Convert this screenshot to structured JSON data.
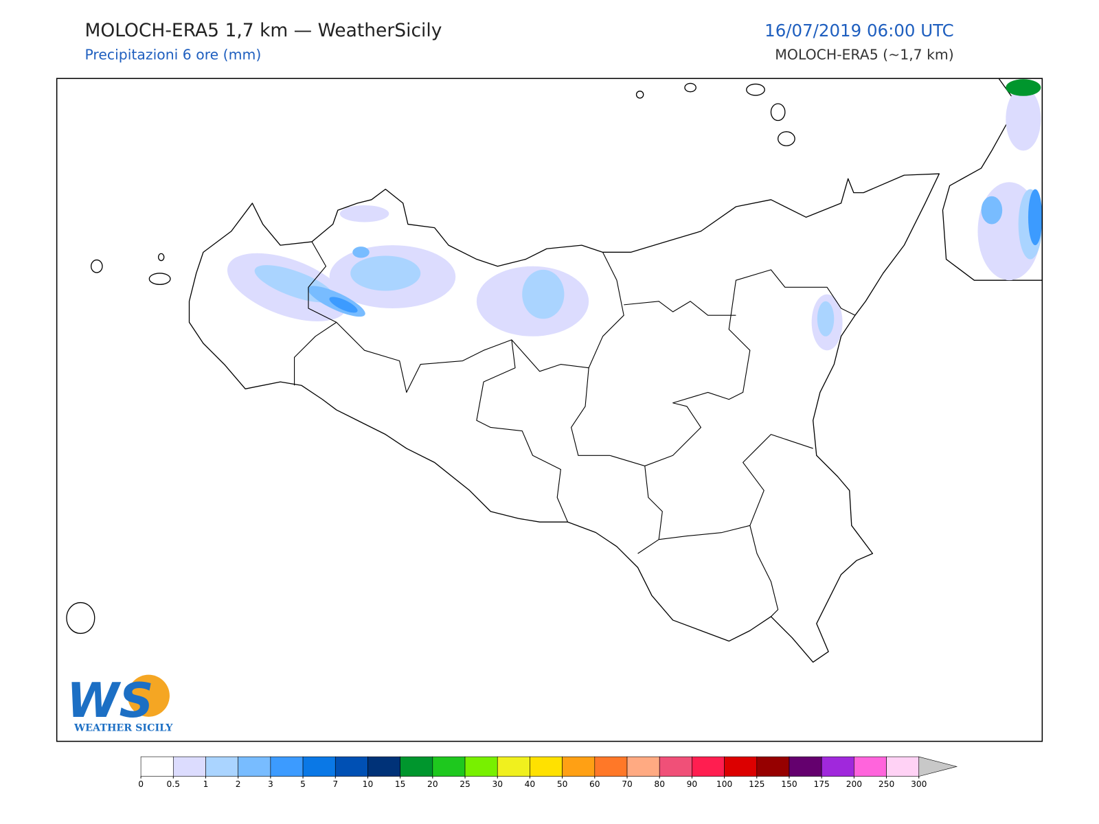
{
  "header": {
    "title": "MOLOCH-ERA5 1,7 km — WeatherSicily",
    "subtitle": "Precipitazioni 6 ore (mm)",
    "datetime": "16/07/2019 06:00 UTC",
    "model": "MOLOCH-ERA5 (~1,7 km)"
  },
  "logo": {
    "mark": "WS",
    "text": "WEATHER SICILY"
  },
  "colorbar": {
    "levels": [
      0,
      0.5,
      1,
      2,
      3,
      5,
      7,
      10,
      15,
      20,
      25,
      30,
      40,
      50,
      60,
      70,
      80,
      90,
      100,
      125,
      150,
      175,
      200,
      250,
      300
    ],
    "colors": [
      "#ffffff",
      "#dcdcfe",
      "#aad4ff",
      "#78bcff",
      "#3c9bff",
      "#0a78e6",
      "#0050b4",
      "#003278",
      "#00962d",
      "#1ec81e",
      "#78f000",
      "#f0f01e",
      "#ffe100",
      "#ffa014",
      "#ff7828",
      "#ffaa82",
      "#f05078",
      "#ff1e50",
      "#dc0000",
      "#960000",
      "#64006e",
      "#a028dc",
      "#ff64dc",
      "#ffd2f5"
    ],
    "extend_color": "#c8c8c8"
  }
}
